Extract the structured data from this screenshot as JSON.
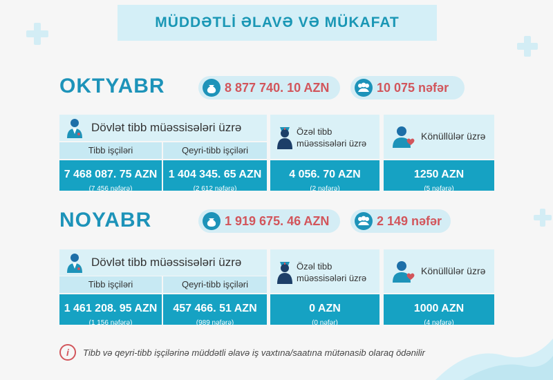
{
  "title": "MÜDDƏTLİ ƏLAVƏ VƏ MÜKAFAT",
  "months": [
    {
      "name": "OKTYABR",
      "total_amount": "8 877 740. 10 AZN",
      "total_people": "10 075 nəfər",
      "state_label": "Dövlət tibb müəssisələri üzrə",
      "medical_label": "Tibb işçiləri",
      "medical_amount": "7 468 087. 75 AZN",
      "medical_count": "(7 456 nəfərə)",
      "nonmedical_label": "Qeyri-tibb işçiləri",
      "nonmedical_amount": "1 404 345. 65 AZN",
      "nonmedical_count": "(2 612 nəfərə)",
      "private_label_1": "Özəl tibb",
      "private_label_2": "müəssisələri üzrə",
      "private_amount": "4 056. 70 AZN",
      "private_count": "(2 nəfərə)",
      "volunteer_label": "Könüllülər üzrə",
      "volunteer_amount": "1250 AZN",
      "volunteer_count": "(5 nəfərə)"
    },
    {
      "name": "NOYABR",
      "total_amount": "1 919 675. 46 AZN",
      "total_people": "2 149 nəfər",
      "state_label": "Dövlət tibb müəssisələri üzrə",
      "medical_label": "Tibb işçiləri",
      "medical_amount": "1 461 208. 95 AZN",
      "medical_count": "(1 156 nəfərə)",
      "nonmedical_label": "Qeyri-tibb işçiləri",
      "nonmedical_amount": "457 466. 51 AZN",
      "nonmedical_count": "(989 nəfərə)",
      "private_label_1": "Özəl tibb",
      "private_label_2": "müəssisələri üzrə",
      "private_amount": "0 AZN",
      "private_count": "(0 nəfər)",
      "volunteer_label": "Könüllülər üzrə",
      "volunteer_amount": "1000 AZN",
      "volunteer_count": "(4 nəfərə)"
    }
  ],
  "footnote": "Tibb və qeyri-tibb işçilərinə müddətli əlavə iş vaxtına/saatına mütənasib olaraq ödənilir",
  "icons": {
    "money": "money-bag-icon",
    "people": "people-group-icon",
    "doctor": "doctor-icon",
    "nurse": "nurse-icon",
    "volunteer": "volunteer-icon",
    "info": "info-icon"
  },
  "colors": {
    "accent": "#1d93b9",
    "highlight": "#d2555b",
    "value_bg": "#16a2c3"
  }
}
